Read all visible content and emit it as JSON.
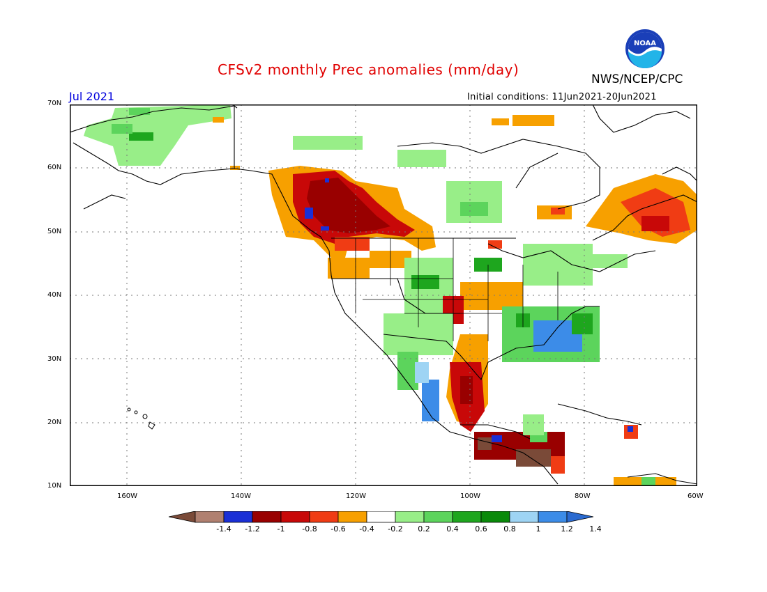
{
  "header": {
    "title": "CFSv2 monthly Prec anomalies (mm/day)",
    "agency": "NWS/NCEP/CPC",
    "logo_text": "NOAA",
    "month": "Jul 2021",
    "initial_conditions": "Initial conditions: 11Jun2021-20Jun2021"
  },
  "axes": {
    "lat_labels": [
      "70N",
      "60N",
      "50N",
      "40N",
      "30N",
      "20N",
      "10N"
    ],
    "lon_labels": [
      "160W",
      "140W",
      "120W",
      "100W",
      "80W",
      "60W"
    ]
  },
  "legend": {
    "labels": [
      "-1.4",
      "-1.2",
      "-1",
      "-0.8",
      "-0.6",
      "-0.4",
      "-0.2",
      "0.2",
      "0.4",
      "0.6",
      "0.8",
      "1",
      "1.2",
      "1.4"
    ],
    "colors": [
      "#7a4a38",
      "#b08070",
      "#1a2fd6",
      "#990000",
      "#c80808",
      "#f03c14",
      "#f7a000",
      "#ffffff",
      "#98ee88",
      "#5cd45c",
      "#1ea61e",
      "#0a8a0a",
      "#9ed4f4",
      "#3c8ce8",
      "#2a6ad0"
    ]
  },
  "colors": {
    "title": "#e00000",
    "month": "#0000dd",
    "dry_strong": "#990000",
    "dry": "#f7a000",
    "wet": "#5cd45c",
    "wet_strong": "#3c8ce8"
  }
}
